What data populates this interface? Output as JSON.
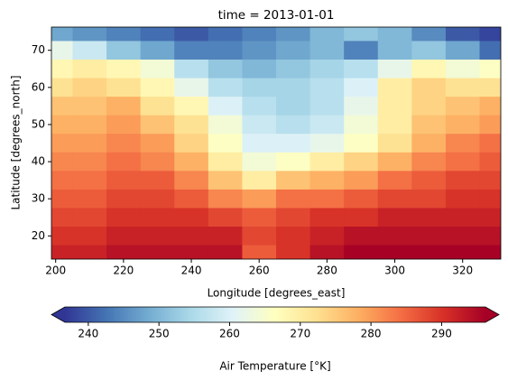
{
  "chart_data": {
    "type": "heatmap",
    "title": "time = 2013-01-01",
    "xlabel": "Longitude [degrees_east]",
    "ylabel": "Latitude [degrees_north]",
    "colorbar_label": "Air Temperature [°K]",
    "x": [
      200,
      210,
      220,
      230,
      240,
      250,
      260,
      270,
      280,
      290,
      300,
      310,
      320,
      330
    ],
    "y": [
      75,
      70,
      65,
      60,
      55,
      50,
      45,
      40,
      35,
      30,
      25,
      20,
      15
    ],
    "z": [
      [
        248,
        246,
        244,
        242,
        240,
        242,
        244,
        246,
        250,
        252,
        250,
        245,
        240,
        238
      ],
      [
        262,
        258,
        252,
        248,
        244,
        244,
        246,
        248,
        250,
        244,
        250,
        252,
        248,
        242
      ],
      [
        268,
        270,
        268,
        264,
        256,
        252,
        250,
        252,
        254,
        256,
        262,
        268,
        264,
        266
      ],
      [
        272,
        274,
        272,
        268,
        262,
        256,
        254,
        254,
        256,
        260,
        270,
        274,
        272,
        272
      ],
      [
        276,
        276,
        278,
        272,
        268,
        260,
        256,
        254,
        256,
        262,
        270,
        274,
        276,
        278
      ],
      [
        278,
        278,
        280,
        276,
        272,
        264,
        258,
        256,
        258,
        264,
        270,
        276,
        278,
        280
      ],
      [
        280,
        280,
        282,
        280,
        274,
        266,
        260,
        260,
        262,
        266,
        272,
        278,
        282,
        284
      ],
      [
        282,
        282,
        284,
        282,
        278,
        270,
        264,
        266,
        270,
        274,
        278,
        282,
        284,
        286
      ],
      [
        284,
        284,
        286,
        286,
        282,
        276,
        270,
        276,
        278,
        280,
        284,
        286,
        288,
        288
      ],
      [
        286,
        286,
        288,
        288,
        286,
        282,
        280,
        284,
        284,
        286,
        288,
        288,
        290,
        290
      ],
      [
        288,
        288,
        290,
        290,
        290,
        288,
        286,
        288,
        290,
        290,
        292,
        292,
        292,
        292
      ],
      [
        290,
        290,
        292,
        292,
        292,
        292,
        288,
        290,
        292,
        294,
        294,
        294,
        294,
        294
      ],
      [
        292,
        292,
        294,
        294,
        294,
        294,
        286,
        290,
        294,
        296,
        296,
        296,
        296,
        296
      ]
    ],
    "xlim": [
      198.75,
      331.25
    ],
    "ylim": [
      13.75,
      76.25
    ],
    "xticks": [
      200,
      220,
      240,
      260,
      280,
      300,
      320
    ],
    "yticks": [
      20,
      30,
      40,
      50,
      60,
      70
    ],
    "clim": [
      236.7,
      296.2
    ],
    "cticks": [
      240,
      250,
      260,
      270,
      280,
      290
    ],
    "colormap": [
      "#313695",
      "#4575b4",
      "#74add1",
      "#abd9e9",
      "#e0f3f8",
      "#ffffbf",
      "#fee090",
      "#fdae61",
      "#f46d43",
      "#d73027",
      "#a50026"
    ]
  }
}
